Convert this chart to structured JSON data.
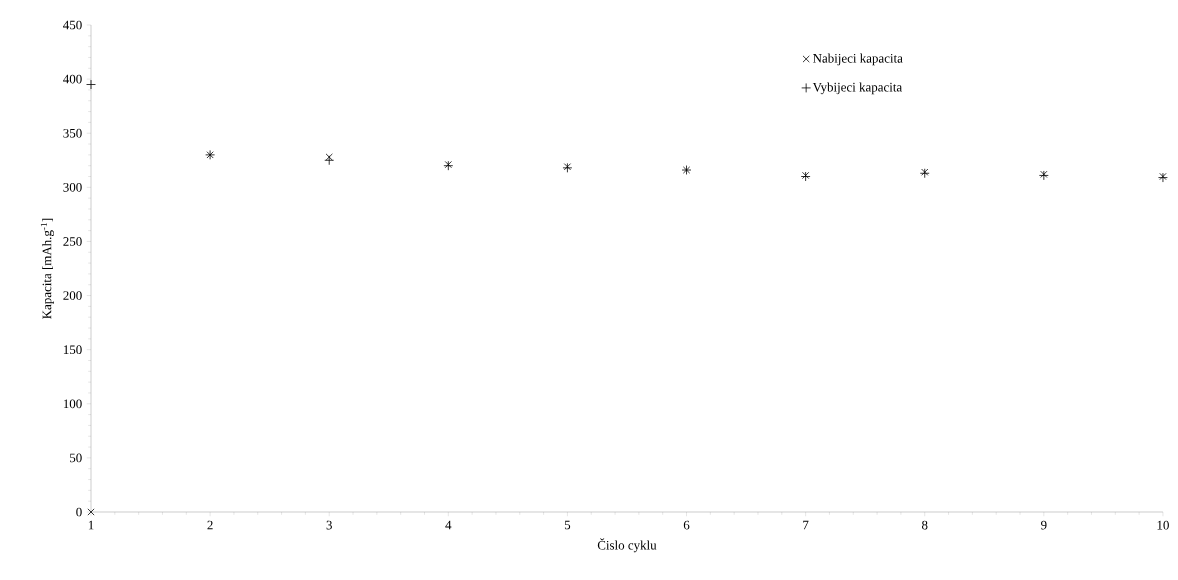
{
  "chart_data": {
    "type": "scatter",
    "xlabel": "Čislo cyklu",
    "ylabel": "Kapacita [mAh.g$^{-1}$]",
    "x": [
      1,
      2,
      3,
      4,
      5,
      6,
      7,
      8,
      9,
      10
    ],
    "series": [
      {
        "name": "Nabijeci kapacita",
        "color": "#000000",
        "marker": "cross",
        "values": [
          0,
          330,
          328,
          321,
          319,
          316,
          311,
          314,
          312,
          310
        ]
      },
      {
        "name": "Vybijeci kapacita",
        "color": "#000000",
        "marker": "plus",
        "values": [
          395,
          330,
          325,
          320,
          318,
          316,
          310,
          313,
          311,
          309
        ]
      }
    ],
    "xlim": [
      1,
      10
    ],
    "xticks": [
      1,
      2,
      3,
      4,
      5,
      6,
      7,
      8,
      9,
      10
    ],
    "ylim": [
      0,
      450
    ],
    "yticks": [
      0,
      50,
      100,
      150,
      200,
      250,
      300,
      350,
      400,
      450
    ],
    "grid": false,
    "legend": "top right"
  }
}
